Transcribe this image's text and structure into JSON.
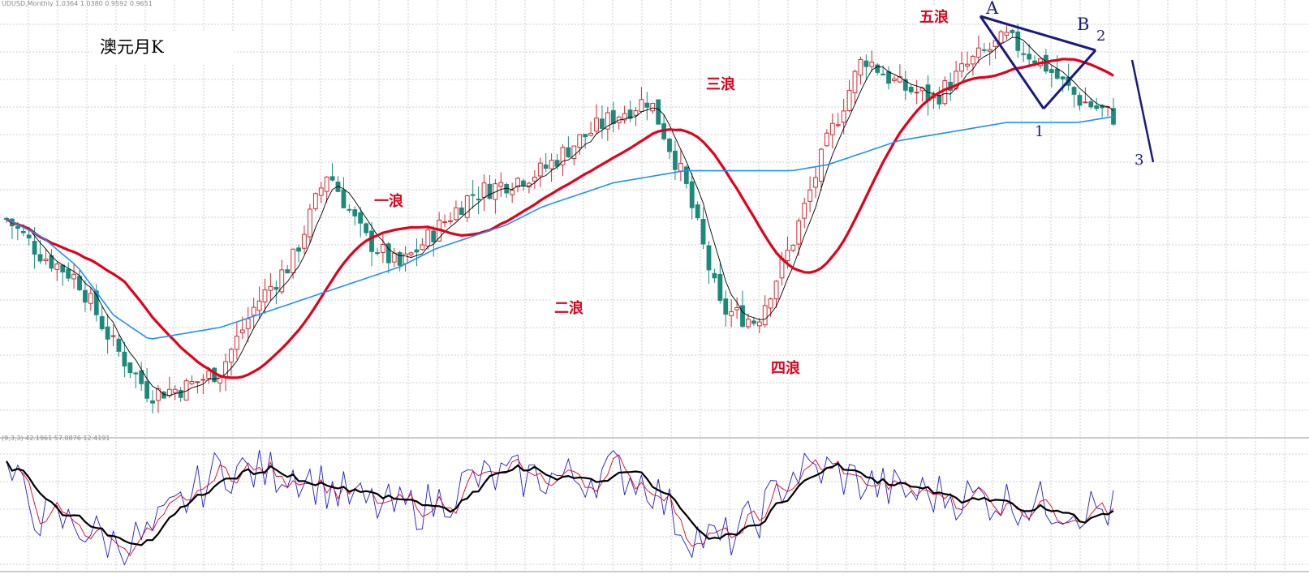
{
  "header": {
    "symbol_line": "UDUSD,Monthly  1.0364 1.0380 0.9592 0.9651",
    "indicator_line": "(9,3,3) 42.1961 57.0876 12.4191"
  },
  "title": "澳元月K",
  "wave_labels": [
    "一浪",
    "二浪",
    "三浪",
    "四浪",
    "五浪"
  ],
  "pattern_labels": [
    "A",
    "B",
    "1",
    "2",
    "3"
  ],
  "colors": {
    "up_candle": "#d9282f",
    "down_candle": "#1b8a7a",
    "ma_fast": "#000000",
    "ma_mid": "#e3001b",
    "ma_slow": "#1e90ff",
    "stoch_k": "#1f1fd0",
    "stoch_d": "#e3001b",
    "stoch_signal": "#000000",
    "annotation": "#1a1a80"
  },
  "chart_data": [
    {
      "type": "candlestick",
      "title": "澳元月K",
      "series": [
        {
          "name": "price",
          "y": [
            0.8,
            0.74,
            0.7,
            0.59,
            0.51,
            0.52,
            0.55,
            0.66,
            0.73,
            0.88,
            0.77,
            0.72,
            0.78,
            0.84,
            0.86,
            0.88,
            0.93,
            0.97,
            1.0,
            0.86,
            0.65,
            0.63,
            0.76,
            0.93,
            1.07,
            1.02,
            1.0,
            1.06,
            1.1,
            1.06,
            1.0,
            0.97
          ]
        },
        {
          "name": "ma_slow",
          "y": [
            0.8,
            0.77,
            0.72,
            0.64,
            0.6,
            0.61,
            0.62,
            0.64,
            0.66,
            0.68,
            0.7,
            0.72,
            0.75,
            0.77,
            0.79,
            0.82,
            0.84,
            0.86,
            0.87,
            0.88,
            0.88,
            0.88,
            0.88,
            0.89,
            0.91,
            0.93,
            0.94,
            0.95,
            0.96,
            0.96,
            0.96,
            0.97
          ]
        }
      ]
    },
    {
      "type": "line",
      "title": "",
      "series": [
        {
          "name": "",
          "y": [
            78,
            40,
            35,
            20,
            25,
            55,
            82,
            78,
            80,
            66,
            52,
            48,
            52,
            72,
            74,
            75,
            73,
            80,
            70,
            30,
            20,
            40,
            78,
            80,
            70,
            62,
            60,
            58,
            55,
            52,
            50,
            46
          ]
        },
        {
          "name": "",
          "y": [
            70,
            45,
            35,
            25,
            28,
            50,
            75,
            75,
            77,
            62,
            50,
            48,
            51,
            68,
            72,
            73,
            72,
            75,
            65,
            35,
            28,
            45,
            72,
            73,
            68,
            60,
            58,
            56,
            54,
            52,
            49,
            45
          ]
        }
      ]
    }
  ]
}
